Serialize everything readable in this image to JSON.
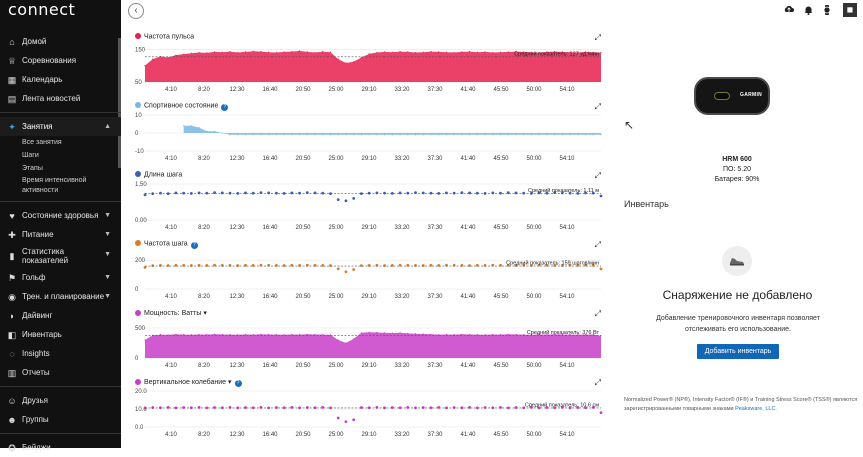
{
  "app": {
    "brand": "connect"
  },
  "sidebar": {
    "items": [
      {
        "label": "Домой",
        "icon": "home-icon",
        "glyph": "⌂"
      },
      {
        "label": "Соревнования",
        "icon": "trophy-icon",
        "glyph": "♕"
      },
      {
        "label": "Календарь",
        "icon": "calendar-icon",
        "glyph": "▦"
      },
      {
        "label": "Лента новостей",
        "icon": "newsfeed-icon",
        "glyph": "▤"
      }
    ],
    "active": {
      "label": "Занятия",
      "icon": "activity-icon",
      "glyph": "✦",
      "chevron": "▲"
    },
    "subitems": [
      "Все занятия",
      "Шаги",
      "Этапы",
      "Время интенсивной активности"
    ],
    "items2": [
      {
        "label": "Состояние здоровья",
        "icon": "heart-icon",
        "glyph": "♥",
        "chevron": "▼"
      },
      {
        "label": "Питание",
        "icon": "nutrition-icon",
        "glyph": "✚",
        "chevron": "▼"
      },
      {
        "label": "Статистика показателей",
        "icon": "stats-icon",
        "glyph": "▮",
        "chevron": "▼"
      },
      {
        "label": "Гольф",
        "icon": "golf-icon",
        "glyph": "⚑",
        "chevron": "▼"
      },
      {
        "label": "Трен. и планирование",
        "icon": "training-icon",
        "glyph": "◉",
        "chevron": "▼"
      },
      {
        "label": "Дайвинг",
        "icon": "diving-icon",
        "glyph": "◗"
      },
      {
        "label": "Инвентарь",
        "icon": "gear-icon",
        "glyph": "◧"
      },
      {
        "label": "Insights",
        "icon": "insights-icon",
        "glyph": "◌"
      },
      {
        "label": "Отчеты",
        "icon": "reports-icon",
        "glyph": "▥"
      }
    ],
    "items3": [
      {
        "label": "Друзья",
        "icon": "friends-icon",
        "glyph": "☺"
      },
      {
        "label": "Группы",
        "icon": "groups-icon",
        "glyph": "☻"
      }
    ],
    "items4": [
      {
        "label": "Бейджи",
        "icon": "badge-icon",
        "glyph": "✪"
      }
    ]
  },
  "topbar": {
    "back": "‹"
  },
  "charts": [
    {
      "title": "Частота пульса",
      "color": "#e8204f",
      "info": false,
      "dropdown": false,
      "yticks": [
        "150",
        "50"
      ],
      "avg": "Средний показатель: 127 уд./мин",
      "chart_data": {
        "type": "area",
        "title": "Частота пульса",
        "ylim": [
          50,
          160
        ],
        "baseline": 50,
        "x": [
          0,
          1,
          2,
          3,
          4,
          5,
          6,
          7,
          8,
          9,
          10,
          11,
          12,
          13,
          14,
          15,
          16,
          17,
          18,
          19,
          20,
          21,
          22,
          23,
          24,
          25,
          26,
          27,
          28,
          29,
          30,
          31,
          32,
          33,
          34,
          35,
          36,
          37,
          38,
          39,
          40,
          41,
          42,
          43,
          44,
          45,
          46,
          47,
          48,
          49,
          50,
          51,
          52,
          53,
          54,
          55,
          56,
          57,
          58,
          59
        ],
        "values": [
          100,
          120,
          128,
          125,
          132,
          135,
          138,
          140,
          139,
          142,
          141,
          143,
          140,
          142,
          144,
          143,
          141,
          140,
          142,
          143,
          145,
          142,
          140,
          143,
          141,
          120,
          108,
          112,
          125,
          136,
          140,
          142,
          141,
          143,
          142,
          140,
          141,
          143,
          142,
          141,
          140,
          142,
          143,
          141,
          142,
          140,
          141,
          142,
          143,
          142,
          141,
          140,
          142,
          143,
          142,
          141,
          140,
          142,
          141,
          140
        ],
        "avg": 127
      }
    },
    {
      "title": "Спортивное состояние",
      "color": "#79b6e0",
      "info": true,
      "dropdown": false,
      "yticks": [
        "10",
        "0",
        "-10"
      ],
      "avg": "",
      "chart_data": {
        "type": "area",
        "title": "Спортивное состояние",
        "ylim": [
          -10,
          10
        ],
        "baseline": 0,
        "x": [
          0,
          1,
          2,
          3,
          4,
          5,
          6,
          7,
          8,
          9,
          10,
          11,
          12,
          13,
          14,
          15,
          16,
          17,
          18,
          19,
          20,
          21,
          22,
          23,
          24,
          25,
          26,
          27,
          28,
          29,
          30,
          31,
          32,
          33,
          34,
          35,
          36,
          37,
          38,
          39,
          40,
          41,
          42,
          43,
          44,
          45,
          46,
          47,
          48,
          49,
          50,
          51,
          52,
          53,
          54,
          55,
          56,
          57,
          58,
          59
        ],
        "values": [
          null,
          null,
          null,
          null,
          null,
          4,
          4,
          3,
          1,
          1,
          0,
          -1,
          -1,
          -1,
          -1,
          -1,
          -1,
          -1,
          -1,
          -1,
          -1,
          -1,
          -1,
          -1,
          -1,
          -1,
          -1,
          -1,
          -1,
          -1,
          -1,
          -1,
          -1,
          -1,
          -1,
          -1,
          -1,
          -1,
          -1,
          -1,
          -1,
          -1,
          -1,
          -1,
          -1,
          -1,
          -1,
          -1,
          -1,
          -1,
          -1,
          -1,
          -1,
          -1,
          -1,
          -1,
          -1,
          -1,
          -1,
          -1
        ]
      }
    },
    {
      "title": "Длина шага",
      "color": "#3c5fb5",
      "info": false,
      "dropdown": false,
      "yticks": [
        "1.50",
        "0.00"
      ],
      "avg": "Средний показатель: 1.11 м",
      "chart_data": {
        "type": "scatter",
        "title": "Длина шага",
        "ylim": [
          0,
          1.5
        ],
        "baseline": 0,
        "x": [
          0,
          1,
          2,
          3,
          4,
          5,
          6,
          7,
          8,
          9,
          10,
          11,
          12,
          13,
          14,
          15,
          16,
          17,
          18,
          19,
          20,
          21,
          22,
          23,
          24,
          25,
          26,
          27,
          28,
          29,
          30,
          31,
          32,
          33,
          34,
          35,
          36,
          37,
          38,
          39,
          40,
          41,
          42,
          43,
          44,
          45,
          46,
          47,
          48,
          49,
          50,
          51,
          52,
          53,
          54,
          55,
          56,
          57,
          58,
          59
        ],
        "values": [
          1.05,
          1.1,
          1.12,
          1.1,
          1.13,
          1.12,
          1.11,
          1.13,
          1.12,
          1.14,
          1.13,
          1.12,
          1.11,
          1.13,
          1.12,
          1.14,
          1.13,
          1.12,
          1.11,
          1.13,
          1.12,
          1.14,
          1.13,
          1.12,
          1.1,
          0.85,
          0.8,
          0.9,
          1.1,
          1.12,
          1.13,
          1.12,
          1.11,
          1.13,
          1.12,
          1.14,
          1.13,
          1.12,
          1.11,
          1.13,
          1.12,
          1.14,
          1.13,
          1.12,
          1.11,
          1.13,
          1.12,
          1.14,
          1.13,
          1.12,
          1.11,
          1.13,
          1.12,
          1.14,
          1.13,
          1.12,
          1.11,
          1.13,
          1.12,
          1.0
        ],
        "avg": 1.11
      }
    },
    {
      "title": "Частота шага",
      "color": "#e07b26",
      "info": true,
      "dropdown": false,
      "yticks": [
        "200",
        "0"
      ],
      "avg": "Средний показатель: 159 шагов/мин",
      "chart_data": {
        "type": "scatter",
        "title": "Частота шага",
        "ylim": [
          0,
          250
        ],
        "baseline": 0,
        "x": [
          0,
          1,
          2,
          3,
          4,
          5,
          6,
          7,
          8,
          9,
          10,
          11,
          12,
          13,
          14,
          15,
          16,
          17,
          18,
          19,
          20,
          21,
          22,
          23,
          24,
          25,
          26,
          27,
          28,
          29,
          30,
          31,
          32,
          33,
          34,
          35,
          36,
          37,
          38,
          39,
          40,
          41,
          42,
          43,
          44,
          45,
          46,
          47,
          48,
          49,
          50,
          51,
          52,
          53,
          54,
          55,
          56,
          57,
          58,
          59
        ],
        "values": [
          150,
          162,
          164,
          163,
          165,
          164,
          163,
          165,
          164,
          166,
          165,
          164,
          163,
          165,
          164,
          166,
          165,
          164,
          163,
          165,
          164,
          166,
          165,
          164,
          163,
          140,
          120,
          135,
          162,
          164,
          165,
          163,
          164,
          166,
          165,
          164,
          163,
          165,
          164,
          166,
          165,
          164,
          163,
          165,
          164,
          166,
          165,
          164,
          163,
          165,
          164,
          166,
          165,
          164,
          163,
          165,
          164,
          166,
          165,
          140
        ],
        "avg": 159
      }
    },
    {
      "title": "Мощность: Ватты",
      "color": "#c83ec8",
      "info": false,
      "dropdown": true,
      "yticks": [
        "500",
        "0"
      ],
      "avg": "Средний показатель: 376 Вт",
      "chart_data": {
        "type": "area",
        "title": "Мощность: Ватты",
        "ylim": [
          0,
          600
        ],
        "baseline": 0,
        "x": [
          0,
          1,
          2,
          3,
          4,
          5,
          6,
          7,
          8,
          9,
          10,
          11,
          12,
          13,
          14,
          15,
          16,
          17,
          18,
          19,
          20,
          21,
          22,
          23,
          24,
          25,
          26,
          27,
          28,
          29,
          30,
          31,
          32,
          33,
          34,
          35,
          36,
          37,
          38,
          39,
          40,
          41,
          42,
          43,
          44,
          45,
          46,
          47,
          48,
          49,
          50,
          51,
          52,
          53,
          54,
          55,
          56,
          57,
          58,
          59
        ],
        "values": [
          300,
          380,
          390,
          385,
          395,
          390,
          388,
          392,
          390,
          395,
          392,
          390,
          388,
          392,
          390,
          395,
          392,
          390,
          388,
          392,
          390,
          395,
          392,
          390,
          385,
          300,
          250,
          320,
          420,
          430,
          425,
          420,
          415,
          420,
          410,
          405,
          400,
          395,
          390,
          392,
          390,
          395,
          392,
          390,
          388,
          392,
          390,
          395,
          392,
          390,
          388,
          392,
          390,
          395,
          392,
          390,
          388,
          392,
          390,
          370
        ],
        "avg": 376
      }
    },
    {
      "title": "Вертикальное колебание",
      "color": "#c83ec8",
      "info": true,
      "dropdown": true,
      "yticks": [
        "20.0",
        "10.0",
        "0.0"
      ],
      "avg": "Средний показатель: 10.6 см",
      "chart_data": {
        "type": "scatter",
        "title": "Вертикальное колебание",
        "ylim": [
          0,
          20
        ],
        "baseline": 0,
        "x": [
          0,
          1,
          2,
          3,
          4,
          5,
          6,
          7,
          8,
          9,
          10,
          11,
          12,
          13,
          14,
          15,
          16,
          17,
          18,
          19,
          20,
          21,
          22,
          23,
          24,
          25,
          26,
          27,
          28,
          29,
          30,
          31,
          32,
          33,
          34,
          35,
          36,
          37,
          38,
          39,
          40,
          41,
          42,
          43,
          44,
          45,
          46,
          47,
          48,
          49,
          50,
          51,
          52,
          53,
          54,
          55,
          56,
          57,
          58,
          59
        ],
        "values": [
          10.5,
          10.8,
          10.7,
          10.9,
          10.6,
          10.8,
          10.7,
          10.9,
          10.6,
          10.8,
          10.7,
          10.9,
          10.6,
          10.8,
          10.7,
          10.9,
          10.6,
          10.8,
          10.7,
          10.9,
          10.6,
          10.8,
          10.7,
          10.9,
          10.6,
          5,
          3,
          4,
          10.8,
          10.7,
          10.9,
          10.6,
          10.8,
          10.7,
          10.9,
          10.6,
          10.8,
          10.7,
          10.9,
          10.6,
          10.8,
          10.7,
          10.9,
          10.6,
          10.8,
          10.7,
          10.9,
          10.6,
          10.8,
          10.7,
          10.9,
          10.6,
          10.8,
          10.7,
          10.9,
          10.6,
          10.8,
          10.7,
          10.9,
          8
        ],
        "avg": 10.6
      }
    }
  ],
  "xticks": [
    "4:10",
    "8:20",
    "12:30",
    "16:40",
    "20:50",
    "25:00",
    "29:10",
    "33:20",
    "37:30",
    "41:40",
    "45:50",
    "50:00",
    "54:10"
  ],
  "device": {
    "logo": "GARMIN",
    "name": "HRM 600",
    "software": "ПО: 5.20",
    "battery": "Батарея: 90%"
  },
  "inventory": {
    "heading": "Инвентарь",
    "empty_title": "Снаряжение не добавлено",
    "empty_desc": "Добавление тренировочного инвентаря позволяет отслеживать его использование.",
    "add_button": "Добавить инвентарь",
    "legal_text": "Normalized Power® (NP®), Intensity Factor® (IF®) и Training Stress Score® (TSS®) являются зарегистрированными товарными знаками",
    "legal_link": "Peaksware, LLC."
  }
}
